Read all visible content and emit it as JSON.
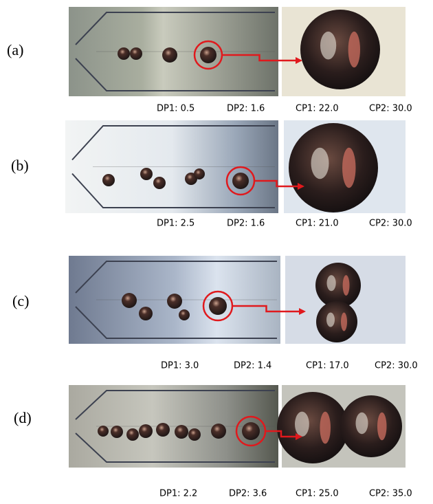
{
  "panels": [
    {
      "label": "(a)",
      "captions": [
        "DP1: 0.5",
        "DP2: 1.6",
        "CP1: 22.0",
        "CP2: 30.0"
      ]
    },
    {
      "label": "(b)",
      "captions": [
        "DP1: 2.5",
        "DP2: 1.6",
        "CP1: 21.0",
        "CP2: 30.0"
      ]
    },
    {
      "label": "(c)",
      "captions": [
        "DP1: 3.0",
        "DP2: 1.4",
        "CP1: 17.0",
        "CP2: 30.0"
      ]
    },
    {
      "label": "(d)",
      "captions": [
        "DP1: 2.2",
        "DP2: 3.6",
        "CP1: 25.0",
        "CP2: 35.0"
      ]
    }
  ]
}
